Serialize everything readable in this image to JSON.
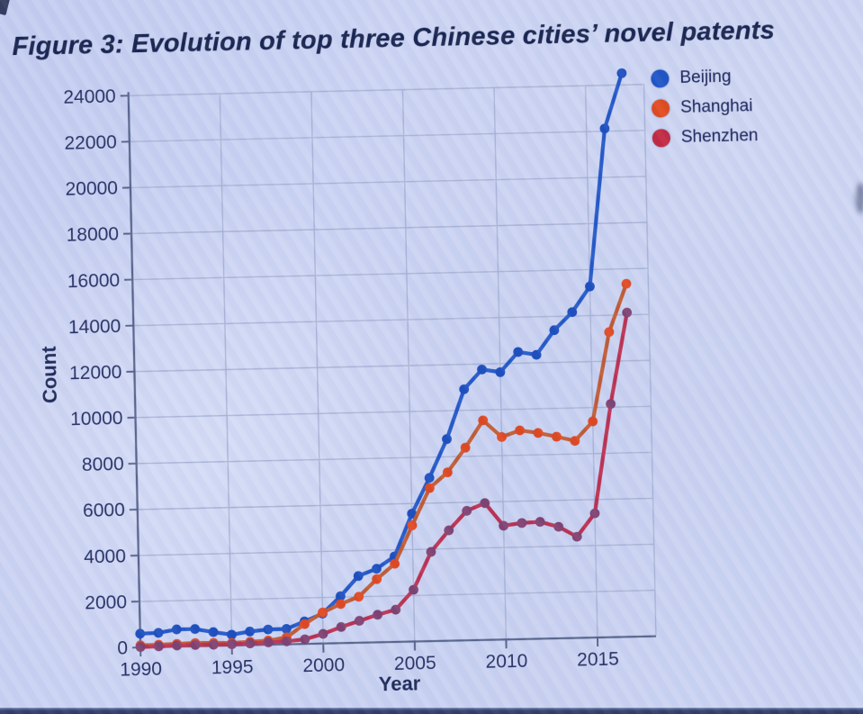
{
  "title": "Figure 3: Evolution of top three Chinese cities’ novel patents",
  "page": {
    "background": "#cbd4f4",
    "bottom_bar_color": "#35426f",
    "text_color": "#202b61"
  },
  "chart_data": {
    "type": "line",
    "title": "Figure 3: Evolution of top three Chinese cities’ novel patents",
    "xlabel": "Year",
    "ylabel": "Count",
    "grid": true,
    "legend_position": "top-right",
    "xlim": [
      1990,
      2017
    ],
    "ylim": [
      0,
      24000
    ],
    "x_ticks": [
      1990,
      1995,
      2000,
      2005,
      2010,
      2015
    ],
    "y_ticks": [
      0,
      2000,
      4000,
      6000,
      8000,
      10000,
      12000,
      14000,
      16000,
      18000,
      20000,
      22000,
      24000
    ],
    "x": [
      1990,
      1991,
      1992,
      1993,
      1994,
      1995,
      1996,
      1997,
      1998,
      1999,
      2000,
      2001,
      2002,
      2003,
      2004,
      2005,
      2006,
      2007,
      2008,
      2009,
      2010,
      2011,
      2012,
      2013,
      2014,
      2015,
      2016,
      2017
    ],
    "series": [
      {
        "name": "Beijing",
        "color": "#1c53c6",
        "line_color": "#2257c8",
        "marker_color": "#1a4dbe",
        "values": [
          600,
          620,
          750,
          750,
          600,
          470,
          590,
          660,
          670,
          980,
          1300,
          2040,
          2900,
          3200,
          3720,
          5560,
          7100,
          8770,
          10920,
          11760,
          11630,
          12490,
          12350,
          13400,
          14170,
          15270,
          22120,
          24510
        ]
      },
      {
        "name": "Shanghai",
        "color": "#e1491d",
        "line_color": "#c05a33",
        "marker_color": "#df4720",
        "values": [
          90,
          100,
          120,
          140,
          130,
          110,
          140,
          180,
          300,
          860,
          1350,
          1700,
          2000,
          2750,
          3400,
          5050,
          6660,
          7320,
          8380,
          9550,
          8810,
          9080,
          8950,
          8770,
          8570,
          9400,
          13270,
          15350
        ]
      },
      {
        "name": "Shenzhen",
        "color": "#c22740",
        "line_color": "#bb2f50",
        "marker_color": "#7e4070",
        "values": [
          20,
          30,
          50,
          60,
          50,
          50,
          70,
          100,
          130,
          200,
          420,
          700,
          950,
          1200,
          1400,
          2250,
          3880,
          4800,
          5630,
          5950,
          4950,
          5050,
          5080,
          4850,
          4400,
          5400,
          10140,
          14100
        ]
      }
    ],
    "axis_label_color": "#1c2857",
    "tick_label_color": "#232e63",
    "grid_color": "#a9b3d6",
    "axis_color": "#56638b"
  }
}
